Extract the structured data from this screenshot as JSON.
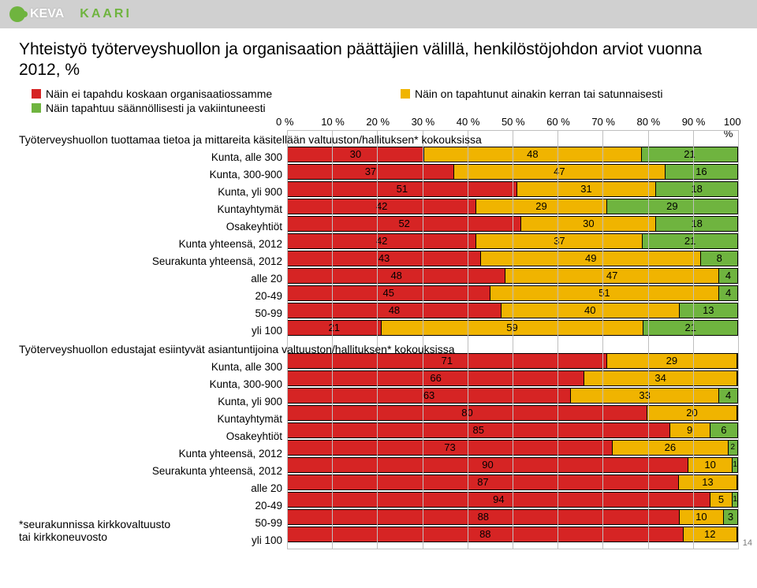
{
  "page": {
    "keva": "KEVA",
    "kaari": "KAARI",
    "page_number": "14"
  },
  "title": "Yhteistyö työterveyshuollon ja organisaation päättäjien välillä, henkilöstöjohdon arviot vuonna 2012, %",
  "legend": {
    "l1": {
      "text": "Näin ei tapahdu koskaan organisaatiossamme",
      "color": "#d62424"
    },
    "l2": {
      "text": "Näin on tapahtunut ainakin kerran tai satunnaisesti",
      "color": "#f0b400"
    },
    "l3": {
      "text": "Näin tapahtuu säännöllisesti ja vakiintuneesti",
      "color": "#6fb43f"
    }
  },
  "axis": {
    "labels": [
      "0 %",
      "10 %",
      "20 %",
      "30 %",
      "40 %",
      "50 %",
      "60 %",
      "70 %",
      "80 %",
      "90 %",
      "100 %"
    ]
  },
  "colors": {
    "c1": "#d62424",
    "c2": "#f0b400",
    "c3": "#6fb43f",
    "grid": "#bfbfbf",
    "text": "#000000"
  },
  "section1": {
    "title": "Työterveyshuollon tuottamaa tietoa ja mittareita käsitellään valtuuston/hallituksen* kokouksissa",
    "rows": [
      {
        "label": "Kunta, alle 300",
        "v": [
          30,
          48,
          21
        ]
      },
      {
        "label": "Kunta, 300-900",
        "v": [
          37,
          47,
          16
        ]
      },
      {
        "label": "Kunta, yli 900",
        "v": [
          51,
          31,
          18
        ]
      },
      {
        "label": "Kuntayhtymät",
        "v": [
          42,
          29,
          29
        ]
      },
      {
        "label": "Osakeyhtiöt",
        "v": [
          52,
          30,
          18
        ]
      },
      {
        "label": "Kunta yhteensä, 2012",
        "v": [
          42,
          37,
          21
        ]
      },
      {
        "label": "Seurakunta yhteensä, 2012",
        "v": [
          43,
          49,
          8
        ]
      },
      {
        "label": "alle 20",
        "v": [
          48,
          47,
          4
        ]
      },
      {
        "label": "20-49",
        "v": [
          45,
          51,
          4
        ]
      },
      {
        "label": "50-99",
        "v": [
          48,
          40,
          13
        ]
      },
      {
        "label": "yli 100",
        "v": [
          21,
          59,
          21
        ]
      }
    ]
  },
  "section2": {
    "title": "Työterveyshuollon edustajat esiintyvät asiantuntijoina valtuuston/hallituksen* kokouksissa",
    "rows": [
      {
        "label": "Kunta, alle 300",
        "v": [
          71,
          29,
          0
        ]
      },
      {
        "label": "Kunta, 300-900",
        "v": [
          66,
          34,
          0
        ]
      },
      {
        "label": "Kunta, yli 900",
        "v": [
          63,
          33,
          4
        ]
      },
      {
        "label": "Kuntayhtymät",
        "v": [
          80,
          20,
          0
        ]
      },
      {
        "label": "Osakeyhtiöt",
        "v": [
          85,
          9,
          6
        ]
      },
      {
        "label": "Kunta yhteensä, 2012",
        "v": [
          73,
          26,
          2
        ]
      },
      {
        "label": "Seurakunta yhteensä, 2012",
        "v": [
          90,
          10,
          1
        ]
      },
      {
        "label": "alle 20",
        "v": [
          87,
          13,
          0
        ]
      },
      {
        "label": "20-49",
        "v": [
          94,
          5,
          1
        ]
      },
      {
        "label": "50-99",
        "v": [
          88,
          10,
          3
        ]
      },
      {
        "label": "yli 100",
        "v": [
          88,
          12,
          0
        ]
      }
    ]
  },
  "footnote": "*seurakunnissa kirkkovaltuusto\ntai kirkkoneuvosto"
}
